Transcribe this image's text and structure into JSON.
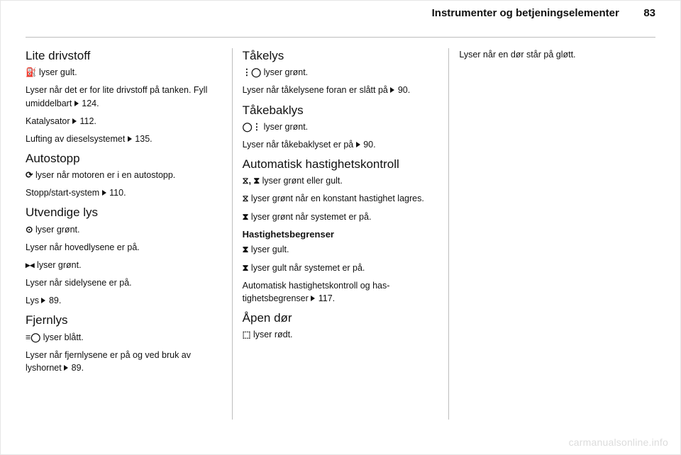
{
  "header": {
    "title": "Instrumenter og betjeningselementer",
    "page_number": "83"
  },
  "watermark": "carmanualsonline.info",
  "col1": {
    "sec1": {
      "title": "Lite drivstoff",
      "p1_sym": "⛽",
      "p1_rest": " lyser gult.",
      "p2_a": "Lyser når det er for lite drivstoff på tanken. Fyll umiddelbart ",
      "p2_ref": " 124.",
      "p3_a": "Katalysator ",
      "p3_ref": " 112.",
      "p4_a": "Lufting av dieselsystemet ",
      "p4_ref": " 135."
    },
    "sec2": {
      "title": "Autostopp",
      "p1_sym": "⟳",
      "p1_rest": " lyser når motoren er i en auto­stopp.",
      "p2_a": "Stopp/start-system ",
      "p2_ref": " 110."
    },
    "sec3": {
      "title": "Utvendige lys",
      "p1_sym": "⊙",
      "p1_rest": " lyser grønt.",
      "p2": "Lyser når hovedlysene er på.",
      "p3_sym": "▸◂",
      "p3_rest": " lyser grønt.",
      "p4": "Lyser når sidelysene er på.",
      "p5_a": "Lys ",
      "p5_ref": " 89."
    },
    "sec4": {
      "title": "Fjernlys",
      "p1_sym": "≡◯",
      "p1_rest": " lyser blått.",
      "p2_a": "Lyser når fjernlysene er på og ved bruk av lyshornet ",
      "p2_ref": " 89."
    }
  },
  "col2": {
    "sec1": {
      "title": "Tåkelys",
      "p1_sym": "⋮◯",
      "p1_rest": " lyser grønt.",
      "p2_a": "Lyser når tåkelysene foran er slått på ",
      "p2_ref": " 90."
    },
    "sec2": {
      "title": "Tåkebaklys",
      "p1_sym": "◯⋮",
      "p1_rest": " lyser grønt.",
      "p2_a": "Lyser når tåkebaklyset er på ",
      "p2_ref": " 90."
    },
    "sec3": {
      "title": "Automatisk hastighetskontroll",
      "p1_sym": "⧖, ⧗",
      "p1_rest": " lyser grønt eller gult.",
      "p2_sym": "⧖",
      "p2_rest": " lyser grønt når en konstant hastig­het lagres.",
      "p3_sym": "⧗",
      "p3_rest": " lyser grønt når systemet er på.",
      "sub_title": "Hastighetsbegrenser",
      "p4_sym": "⧗",
      "p4_rest": " lyser gult.",
      "p5_sym": "⧗",
      "p5_rest": " lyser gult når systemet er på.",
      "p6_a": "Automatisk hastighetskontroll og has­tighetsbegrenser ",
      "p6_ref": " 117."
    },
    "sec4": {
      "title": "Åpen dør",
      "p1_sym": "⬚",
      "p1_rest": " lyser rødt."
    }
  },
  "col3": {
    "p1": "Lyser når en dør står på gløtt."
  }
}
